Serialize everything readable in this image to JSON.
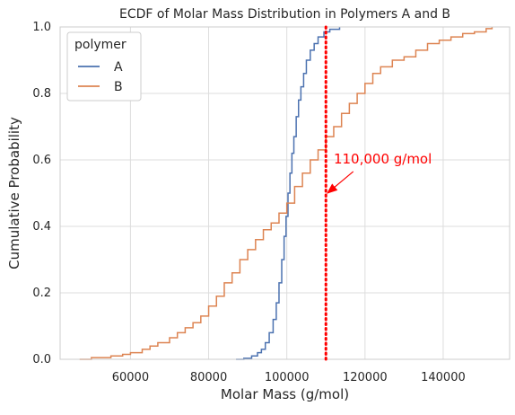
{
  "chart_data": {
    "type": "line",
    "subtype": "ecdf-step",
    "title": "ECDF of Molar Mass Distribution in Polymers A and B",
    "xlabel": "Molar Mass (g/mol)",
    "ylabel": "Cumulative Probability",
    "xlim": [
      42000,
      157000
    ],
    "ylim": [
      0,
      1
    ],
    "xticks": [
      60000,
      80000,
      100000,
      120000,
      140000
    ],
    "yticks": [
      0.0,
      0.2,
      0.4,
      0.6,
      0.8,
      1.0
    ],
    "xtick_labels": [
      "60000",
      "80000",
      "100000",
      "120000",
      "140000"
    ],
    "ytick_labels": [
      "0.0",
      "0.2",
      "0.4",
      "0.6",
      "0.8",
      "1.0"
    ],
    "grid": true,
    "legend": {
      "title": "polymer",
      "placement": "top-left",
      "entries": [
        "A",
        "B"
      ]
    },
    "series": [
      {
        "name": "A",
        "color": "#4c72b0",
        "points": [
          [
            87000,
            0.0
          ],
          [
            89000,
            0.003
          ],
          [
            91000,
            0.01
          ],
          [
            92500,
            0.02
          ],
          [
            93500,
            0.03
          ],
          [
            94500,
            0.05
          ],
          [
            95500,
            0.08
          ],
          [
            96500,
            0.12
          ],
          [
            97300,
            0.17
          ],
          [
            98000,
            0.23
          ],
          [
            98700,
            0.3
          ],
          [
            99300,
            0.37
          ],
          [
            99800,
            0.43
          ],
          [
            100300,
            0.5
          ],
          [
            100800,
            0.56
          ],
          [
            101300,
            0.62
          ],
          [
            101800,
            0.67
          ],
          [
            102400,
            0.73
          ],
          [
            103000,
            0.78
          ],
          [
            103600,
            0.82
          ],
          [
            104300,
            0.86
          ],
          [
            105000,
            0.9
          ],
          [
            106000,
            0.93
          ],
          [
            107000,
            0.95
          ],
          [
            108000,
            0.97
          ],
          [
            109500,
            0.985
          ],
          [
            111000,
            0.993
          ],
          [
            113500,
            1.0
          ]
        ]
      },
      {
        "name": "B",
        "color": "#dd8452",
        "points": [
          [
            47000,
            0.0
          ],
          [
            50000,
            0.005
          ],
          [
            55000,
            0.01
          ],
          [
            58000,
            0.015
          ],
          [
            60000,
            0.02
          ],
          [
            63000,
            0.03
          ],
          [
            65000,
            0.04
          ],
          [
            67000,
            0.05
          ],
          [
            70000,
            0.065
          ],
          [
            72000,
            0.08
          ],
          [
            74000,
            0.095
          ],
          [
            76000,
            0.11
          ],
          [
            78000,
            0.13
          ],
          [
            80000,
            0.16
          ],
          [
            82000,
            0.19
          ],
          [
            84000,
            0.23
          ],
          [
            86000,
            0.26
          ],
          [
            88000,
            0.3
          ],
          [
            90000,
            0.33
          ],
          [
            92000,
            0.36
          ],
          [
            94000,
            0.39
          ],
          [
            96000,
            0.41
          ],
          [
            98000,
            0.44
          ],
          [
            100000,
            0.47
          ],
          [
            102000,
            0.52
          ],
          [
            104000,
            0.56
          ],
          [
            106000,
            0.6
          ],
          [
            108000,
            0.63
          ],
          [
            110000,
            0.67
          ],
          [
            112000,
            0.7
          ],
          [
            114000,
            0.74
          ],
          [
            116000,
            0.77
          ],
          [
            118000,
            0.8
          ],
          [
            120000,
            0.83
          ],
          [
            122000,
            0.86
          ],
          [
            124000,
            0.88
          ],
          [
            127000,
            0.9
          ],
          [
            130000,
            0.91
          ],
          [
            133000,
            0.93
          ],
          [
            136000,
            0.95
          ],
          [
            139000,
            0.96
          ],
          [
            142000,
            0.97
          ],
          [
            145000,
            0.98
          ],
          [
            148000,
            0.985
          ],
          [
            151000,
            0.995
          ],
          [
            152500,
            1.0
          ]
        ]
      }
    ],
    "reference_line": {
      "x": 110000,
      "color": "#ff0000",
      "style": "dotted"
    },
    "annotation": {
      "text": "110,000 g/mol",
      "color": "#ff0000",
      "xy": [
        110000,
        0.5
      ],
      "xytext": [
        112000,
        0.6
      ]
    }
  }
}
